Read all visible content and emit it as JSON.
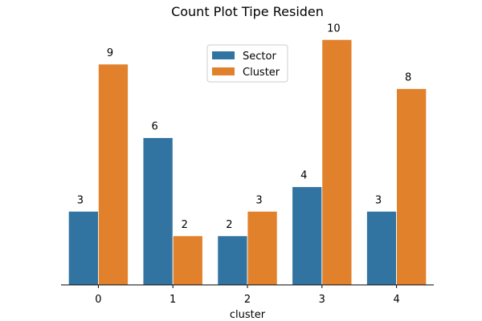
{
  "chart_data": {
    "type": "bar",
    "title": "Count Plot Tipe Residen",
    "xlabel": "cluster",
    "ylabel": "",
    "categories": [
      "0",
      "1",
      "2",
      "3",
      "4"
    ],
    "series": [
      {
        "name": "Sector",
        "values": [
          3,
          6,
          2,
          4,
          3
        ],
        "color": "#3274a1"
      },
      {
        "name": "Cluster",
        "values": [
          9,
          2,
          3,
          10,
          8
        ],
        "color": "#e1812c"
      }
    ],
    "ylim": [
      0,
      10.5
    ],
    "grid": false,
    "legend_position": "top-center",
    "data_labels": true
  }
}
